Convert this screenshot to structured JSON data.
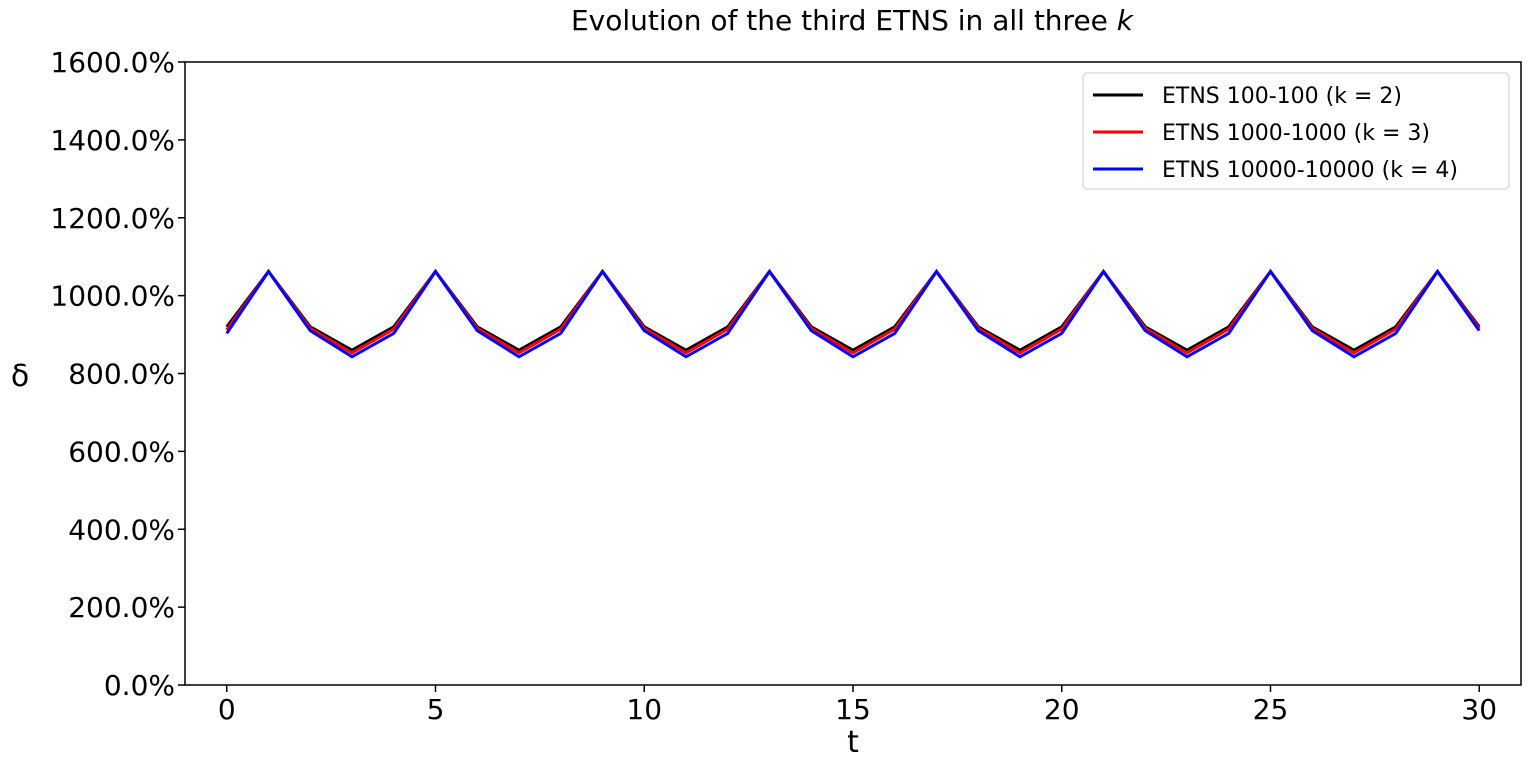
{
  "chart_data": {
    "type": "line",
    "title_main": "Evolution of the third ETNS in all three ",
    "title_italic": "k",
    "xlabel": "t",
    "ylabel": "δ",
    "xlim": [
      -1,
      31
    ],
    "ylim": [
      0,
      1600
    ],
    "xticks": [
      0,
      5,
      10,
      15,
      20,
      25,
      30
    ],
    "xtick_labels": [
      "0",
      "5",
      "10",
      "15",
      "20",
      "25",
      "30"
    ],
    "yticks": [
      0,
      200,
      400,
      600,
      800,
      1000,
      1200,
      1400,
      1600
    ],
    "ytick_labels": [
      "0.0%",
      "200.0%",
      "400.0%",
      "600.0%",
      "800.0%",
      "1000.0%",
      "1200.0%",
      "1400.0%",
      "1600.0%"
    ],
    "grid": false,
    "legend_position": "top-right",
    "x": [
      0,
      1,
      2,
      3,
      4,
      5,
      6,
      7,
      8,
      9,
      10,
      11,
      12,
      13,
      14,
      15,
      16,
      17,
      18,
      19,
      20,
      21,
      22,
      23,
      24,
      25,
      26,
      27,
      28,
      29,
      30
    ],
    "series": [
      {
        "name": "ETNS 100-100 (k = 2)",
        "color": "#000000",
        "values": [
          920,
          1062,
          920,
          860,
          920,
          1062,
          920,
          860,
          920,
          1062,
          920,
          860,
          920,
          1062,
          920,
          860,
          920,
          1062,
          920,
          860,
          920,
          1062,
          920,
          860,
          920,
          1062,
          920,
          860,
          920,
          1062,
          920
        ]
      },
      {
        "name": "ETNS 1000-1000 (k = 3)",
        "color": "#ff0000",
        "values": [
          912,
          1062,
          916,
          853,
          914,
          1062,
          916,
          853,
          914,
          1062,
          916,
          853,
          914,
          1062,
          916,
          853,
          914,
          1062,
          916,
          853,
          914,
          1062,
          916,
          853,
          914,
          1062,
          916,
          853,
          914,
          1062,
          916
        ]
      },
      {
        "name": "ETNS 10000-10000 (k = 4)",
        "color": "#0000ff",
        "values": [
          903,
          1062,
          910,
          843,
          903,
          1062,
          910,
          843,
          903,
          1062,
          910,
          843,
          903,
          1062,
          910,
          843,
          903,
          1062,
          910,
          843,
          903,
          1062,
          910,
          843,
          903,
          1062,
          910,
          843,
          903,
          1062,
          910
        ]
      }
    ]
  }
}
